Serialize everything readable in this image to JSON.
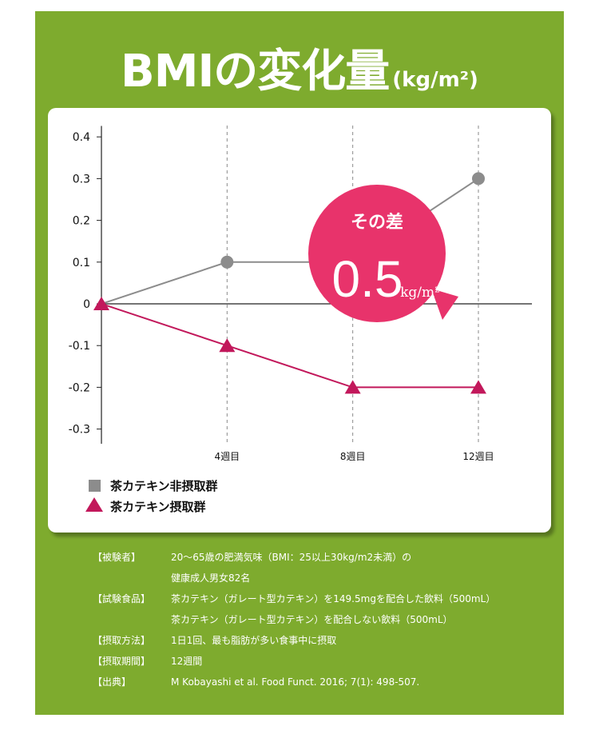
{
  "colors": {
    "background_panel": "#7eab2e",
    "gray_series": "#8c8c8c",
    "crimson_series": "#c2185b",
    "badge": "#e8336b"
  },
  "title": {
    "main": "BMIの変化量",
    "unit": "(kg/m²)"
  },
  "badge": {
    "label": "その差",
    "value": "0.5",
    "unit": "kg/m²"
  },
  "chart_data": {
    "type": "line",
    "title": "BMIの変化量",
    "y_unit": "kg/m²",
    "x": [
      0,
      4,
      8,
      12
    ],
    "tick_labels": [
      "4週目",
      "8週目",
      "12週目"
    ],
    "yticks": [
      0.4,
      0.3,
      0.2,
      0.1,
      0,
      -0.1,
      -0.2,
      -0.3
    ],
    "ytick_labels": [
      "0.4",
      "0.3",
      "0.2",
      "0.1",
      "0",
      "-0.1",
      "-0.2",
      "-0.3"
    ],
    "ylim": [
      -0.35,
      0.43
    ],
    "xlim": [
      0,
      13.5
    ],
    "grid": "vertical dashed at 4, 8, 12 weeks",
    "legend_position": "bottom-left",
    "series": [
      {
        "name": "茶カテキン非摂取群",
        "marker": "circle",
        "color": "#8c8c8c",
        "values": [
          0,
          0.1,
          0.1,
          0.3
        ]
      },
      {
        "name": "茶カテキン摂取群",
        "marker": "triangle",
        "color": "#c2185b",
        "values": [
          0,
          -0.1,
          -0.2,
          -0.2
        ]
      }
    ]
  },
  "notes": [
    {
      "label": "【被験者】",
      "lines": [
        "20〜65歳の肥満気味（BMI：25以上30kg/m2未満）の",
        "健康成人男女82名"
      ]
    },
    {
      "label": "【試験食品】",
      "lines": [
        "茶カテキン（ガレート型カテキン）を149.5mgを配合した飲料（500mL）",
        "茶カテキン（ガレート型カテキン）を配合しない飲料（500mL）"
      ]
    },
    {
      "label": "【摂取方法】",
      "lines": [
        "1日1回、最も脂肪が多い食事中に摂取"
      ]
    },
    {
      "label": "【摂取期間】",
      "lines": [
        "12週間"
      ]
    },
    {
      "label": "【出典】",
      "lines": [
        "M Kobayashi et al. Food Funct. 2016; 7(1): 498-507."
      ]
    }
  ]
}
